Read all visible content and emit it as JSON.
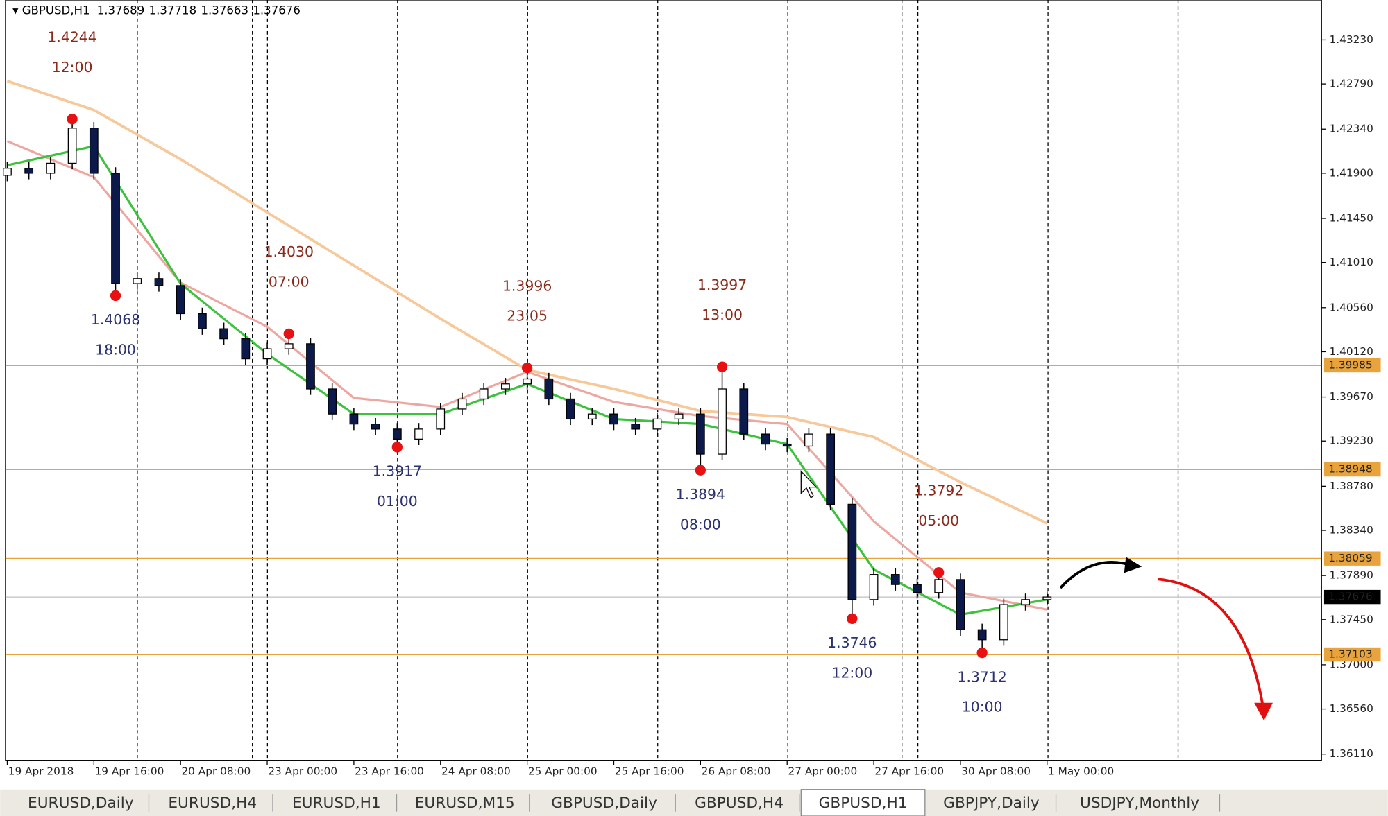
{
  "chart_data": {
    "type": "candlestick",
    "header": {
      "symbol": "GBPUSD,H1",
      "ohlc": [
        1.37689,
        1.37718,
        1.37663,
        1.37676
      ]
    },
    "open": [
      1.4188,
      1.4195,
      1.419,
      1.42,
      1.4235,
      1.419,
      1.408,
      1.4085,
      1.4078,
      1.405,
      1.4035,
      1.4025,
      1.4005,
      1.4015,
      1.402,
      1.3975,
      1.395,
      1.394,
      1.3935,
      1.3925,
      1.3935,
      1.3955,
      1.3965,
      1.3975,
      1.398,
      1.3985,
      1.3965,
      1.3945,
      1.395,
      1.394,
      1.3935,
      1.3945,
      1.395,
      1.391,
      1.3975,
      1.393,
      1.392,
      1.3918,
      1.393,
      1.386,
      1.3765,
      1.379,
      1.378,
      1.3772,
      1.3785,
      1.3735,
      1.3725,
      1.376,
      1.3765
    ],
    "high": [
      1.4201,
      1.4201,
      1.4206,
      1.4244,
      1.4241,
      1.4196,
      1.4091,
      1.4091,
      1.4084,
      1.4056,
      1.4041,
      1.4031,
      1.4021,
      1.403,
      1.4026,
      1.3981,
      1.3956,
      1.3946,
      1.3941,
      1.3941,
      1.3961,
      1.3971,
      1.3981,
      1.3986,
      1.3996,
      1.3991,
      1.3971,
      1.3956,
      1.3956,
      1.3946,
      1.3951,
      1.3956,
      1.3956,
      1.3997,
      1.3981,
      1.3936,
      1.3926,
      1.3936,
      1.3936,
      1.3866,
      1.3796,
      1.3796,
      1.3786,
      1.3792,
      1.3791,
      1.3741,
      1.3766,
      1.3771,
      1.3773
    ],
    "low": [
      1.4182,
      1.4184,
      1.4184,
      1.4194,
      1.4184,
      1.4068,
      1.4074,
      1.4072,
      1.4044,
      1.4029,
      1.4019,
      1.3999,
      1.3999,
      1.4009,
      1.3969,
      1.3944,
      1.3934,
      1.3929,
      1.3917,
      1.3919,
      1.3929,
      1.3949,
      1.3959,
      1.3969,
      1.3974,
      1.3959,
      1.3939,
      1.3939,
      1.3934,
      1.3929,
      1.3929,
      1.3939,
      1.3894,
      1.3904,
      1.3924,
      1.3914,
      1.3912,
      1.3912,
      1.3854,
      1.3746,
      1.3759,
      1.3774,
      1.3766,
      1.3766,
      1.3729,
      1.3712,
      1.3719,
      1.3754,
      1.3759
    ],
    "close": [
      1.4195,
      1.419,
      1.42,
      1.4235,
      1.419,
      1.408,
      1.4085,
      1.4078,
      1.405,
      1.4035,
      1.4025,
      1.4005,
      1.4015,
      1.402,
      1.3975,
      1.395,
      1.394,
      1.3935,
      1.3925,
      1.3935,
      1.3955,
      1.3965,
      1.3975,
      1.398,
      1.3985,
      1.3965,
      1.3945,
      1.395,
      1.394,
      1.3935,
      1.3945,
      1.395,
      1.391,
      1.3975,
      1.393,
      1.392,
      1.3918,
      1.393,
      1.386,
      1.3765,
      1.379,
      1.378,
      1.3772,
      1.3785,
      1.3735,
      1.3725,
      1.376,
      1.3765,
      1.37676
    ],
    "series": [
      {
        "color": "#f7c89a",
        "values": [
          1.4282,
          1.4253,
          1.4204,
          1.4151,
          1.4098,
          1.4045,
          1.3994,
          1.3975,
          1.3953,
          1.3947,
          1.3927,
          1.3882,
          1.3841
        ]
      },
      {
        "color": "#eda7a0",
        "values": [
          1.4222,
          1.4186,
          1.4081,
          1.4037,
          1.3966,
          1.3957,
          1.3992,
          1.3962,
          1.3948,
          1.394,
          1.3843,
          1.3772,
          1.3755
        ]
      },
      {
        "color": "#3cc23c",
        "values": [
          1.4198,
          1.4217,
          1.408,
          1.401,
          1.395,
          1.395,
          1.398,
          1.3945,
          1.394,
          1.392,
          1.3795,
          1.375,
          1.3765
        ]
      }
    ],
    "annotations": [
      {
        "price": 1.4244,
        "time": "12:00"
      },
      {
        "price": 1.4068,
        "time": "18:00"
      },
      {
        "price": {
          "value": 1.403,
          "label": "1.4030"
        },
        "time": "07:00"
      },
      {
        "price": 1.3917,
        "time": "01:00"
      },
      {
        "price": 1.3996,
        "time": "23:05"
      },
      {
        "price": 1.3894,
        "time": "08:00"
      },
      {
        "price": 1.3997,
        "time": "13:00"
      },
      {
        "price": 1.3746,
        "time": "12:00"
      },
      {
        "price": 1.3792,
        "time": "05:00"
      },
      {
        "price": 1.3712,
        "time": "10:00"
      }
    ],
    "levels": [
      1.39985,
      1.38948,
      1.38059,
      1.37103
    ],
    "level_color": "#e8a33c",
    "bid": 1.37676,
    "bull_color": "#ffffff",
    "bear_color": "#0b1a4a",
    "ylim": [
      1.36048,
      1.43627
    ],
    "yticks": [
      {
        "value": 1.4323,
        "label": "1.43230"
      },
      {
        "value": 1.4279,
        "label": "1.42790"
      },
      {
        "value": 1.4234,
        "label": "1.42340"
      },
      {
        "value": 1.419,
        "label": "1.41900"
      },
      {
        "value": 1.4145,
        "label": "1.41450"
      },
      {
        "value": 1.4101,
        "label": "1.41010"
      },
      {
        "value": 1.4056,
        "label": "1.40560"
      },
      {
        "value": 1.4012,
        "label": "1.40120"
      },
      {
        "value": 1.3967,
        "label": "1.39670"
      },
      {
        "value": 1.3923,
        "label": "1.39230"
      },
      {
        "value": 1.3878,
        "label": "1.38780"
      },
      {
        "value": 1.3834,
        "label": "1.38340"
      },
      {
        "value": 1.3789,
        "label": "1.37890"
      },
      {
        "value": 1.3745,
        "label": "1.37450"
      },
      {
        "value": 1.37,
        "label": "1.37000"
      },
      {
        "value": 1.3656,
        "label": "1.36560"
      },
      {
        "value": 1.3611,
        "label": "1.36110"
      }
    ],
    "xticks": [
      "19 Apr 2018",
      "19 Apr 16:00",
      "20 Apr 08:00",
      "23 Apr 00:00",
      "23 Apr 16:00",
      "24 Apr 08:00",
      "25 Apr 00:00",
      "25 Apr 16:00",
      "26 Apr 08:00",
      "27 Apr 00:00",
      "27 Apr 16:00",
      "30 Apr 08:00",
      "1 May 00:00"
    ]
  },
  "tabs": [
    "EURUSD,Daily",
    "EURUSD,H4",
    "EURUSD,H1",
    "EURUSD,M15",
    "GBPUSD,Daily",
    "GBPUSD,H4",
    "GBPUSD,H1",
    "GBPJPY,Daily",
    "USDJPY,Monthly"
  ]
}
